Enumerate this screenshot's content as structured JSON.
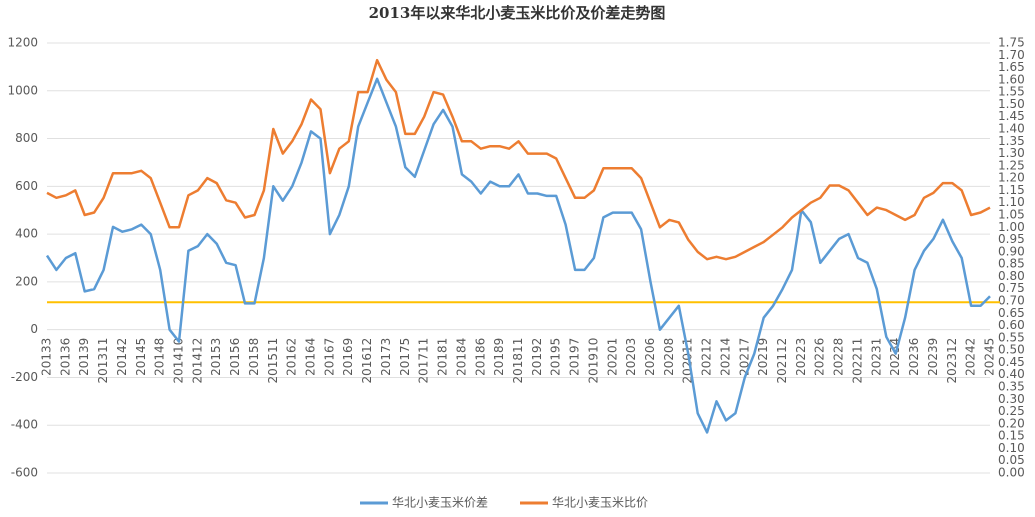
{
  "chart_data": {
    "type": "line",
    "title": "2013年以来华北小麦玉米比价及价差走势图",
    "categories": [
      "20133",
      null,
      "20136",
      null,
      "20139",
      null,
      "201311",
      null,
      "20142",
      null,
      "20145",
      null,
      "20148",
      null,
      "201410",
      null,
      "201412",
      null,
      "20153",
      null,
      "20156",
      null,
      "20158",
      null,
      "201511",
      null,
      "20162",
      null,
      "20164",
      null,
      "20167",
      null,
      "20169",
      null,
      "201612",
      null,
      "20173",
      null,
      "20175",
      null,
      "201711",
      null,
      "20181",
      null,
      "20184",
      null,
      "20186",
      null,
      "20189",
      null,
      "201811",
      null,
      "20192",
      null,
      "20195",
      null,
      "20197",
      null,
      "201910",
      null,
      "20201",
      null,
      "20203",
      null,
      "20206",
      null,
      "20208",
      null,
      "202011",
      null,
      "20212",
      null,
      "20214",
      null,
      "20217",
      null,
      "20219",
      null,
      "202112",
      null,
      "20223",
      null,
      "20226",
      null,
      "20228",
      null,
      "202211",
      null,
      "20231",
      null,
      "20234",
      null,
      "20236",
      null,
      "20239",
      null,
      "202312",
      null,
      "20242",
      null,
      "20245"
    ],
    "series": [
      {
        "name": "华北小麦玉米价差",
        "color": "#5b9bd5",
        "axis": "y",
        "values": [
          310,
          250,
          300,
          320,
          160,
          170,
          250,
          430,
          410,
          420,
          440,
          400,
          250,
          0,
          -50,
          330,
          350,
          400,
          360,
          280,
          270,
          110,
          110,
          300,
          600,
          540,
          600,
          700,
          830,
          800,
          400,
          480,
          600,
          850,
          950,
          1050,
          950,
          850,
          680,
          640,
          750,
          860,
          920,
          850,
          650,
          620,
          570,
          620,
          600,
          600,
          650,
          570,
          570,
          560,
          560,
          440,
          250,
          250,
          300,
          470,
          490,
          490,
          490,
          420,
          200,
          0,
          50,
          100,
          -100,
          -350,
          -430,
          -300,
          -380,
          -350,
          -200,
          -100,
          50,
          100,
          170,
          250,
          500,
          450,
          280,
          330,
          380,
          400,
          300,
          280,
          170,
          -30,
          -100,
          50,
          250,
          330,
          380,
          460,
          370,
          300,
          100,
          100,
          140
        ]
      },
      {
        "name": "华北小麦玉米比价",
        "color": "#ed7d31",
        "axis": "y2",
        "values": [
          1.14,
          1.12,
          1.13,
          1.15,
          1.05,
          1.06,
          1.12,
          1.22,
          1.22,
          1.22,
          1.23,
          1.2,
          1.1,
          1.0,
          1.0,
          1.13,
          1.15,
          1.2,
          1.18,
          1.11,
          1.1,
          1.04,
          1.05,
          1.15,
          1.4,
          1.3,
          1.35,
          1.42,
          1.52,
          1.48,
          1.22,
          1.32,
          1.35,
          1.55,
          1.55,
          1.68,
          1.6,
          1.55,
          1.38,
          1.38,
          1.45,
          1.55,
          1.54,
          1.45,
          1.35,
          1.35,
          1.32,
          1.33,
          1.33,
          1.32,
          1.35,
          1.3,
          1.3,
          1.3,
          1.28,
          1.2,
          1.12,
          1.12,
          1.15,
          1.24,
          1.24,
          1.24,
          1.24,
          1.2,
          1.1,
          1.0,
          1.03,
          1.02,
          0.95,
          0.9,
          0.87,
          0.88,
          0.87,
          0.88,
          0.9,
          0.92,
          0.94,
          0.97,
          1.0,
          1.04,
          1.07,
          1.1,
          1.12,
          1.17,
          1.17,
          1.15,
          1.1,
          1.05,
          1.08,
          1.07,
          1.05,
          1.03,
          1.05,
          1.12,
          1.14,
          1.18,
          1.18,
          1.15,
          1.05,
          1.06,
          1.08
        ]
      }
    ],
    "hline": {
      "value": 115,
      "color": "#ffc000"
    },
    "ylim": [
      -600,
      1200
    ],
    "yticks": [
      -600,
      -400,
      -200,
      0,
      200,
      400,
      600,
      800,
      1000,
      1200
    ],
    "y2lim": [
      0,
      1.75
    ],
    "y2ticks": [
      {
        "value": 0,
        "label": "0.00"
      },
      {
        "value": 0.05,
        "label": "0.05"
      },
      {
        "value": 0.1,
        "label": "0.10"
      },
      {
        "value": 0.15,
        "label": "0.15"
      },
      {
        "value": 0.2,
        "label": "0.20"
      },
      {
        "value": 0.25,
        "label": "0.25"
      },
      {
        "value": 0.3,
        "label": "0.30"
      },
      {
        "value": 0.35,
        "label": "0.35"
      },
      {
        "value": 0.4,
        "label": "0.40"
      },
      {
        "value": 0.45,
        "label": "0.45"
      },
      {
        "value": 0.5,
        "label": "0.50"
      },
      {
        "value": 0.55,
        "label": "0.55"
      },
      {
        "value": 0.6,
        "label": "0.60"
      },
      {
        "value": 0.65,
        "label": "0.65"
      },
      {
        "value": 0.7,
        "label": "0.70"
      },
      {
        "value": 0.75,
        "label": "0.75"
      },
      {
        "value": 0.8,
        "label": "0.80"
      },
      {
        "value": 0.85,
        "label": "0.85"
      },
      {
        "value": 0.9,
        "label": "0.90"
      },
      {
        "value": 0.95,
        "label": "0.95"
      },
      {
        "value": 1,
        "label": "1.00"
      },
      {
        "value": 1.05,
        "label": "1.05"
      },
      {
        "value": 1.1,
        "label": "1.10"
      },
      {
        "value": 1.15,
        "label": "1.15"
      },
      {
        "value": 1.2,
        "label": "1.20"
      },
      {
        "value": 1.25,
        "label": "1.25"
      },
      {
        "value": 1.3,
        "label": "1.30"
      },
      {
        "value": 1.35,
        "label": "1.35"
      },
      {
        "value": 1.4,
        "label": "1.40"
      },
      {
        "value": 1.45,
        "label": "1.45"
      },
      {
        "value": 1.5,
        "label": "1.50"
      },
      {
        "value": 1.55,
        "label": "1.55"
      },
      {
        "value": 1.6,
        "label": "1.60"
      },
      {
        "value": 1.65,
        "label": "1.65"
      },
      {
        "value": 1.7,
        "label": "1.70"
      },
      {
        "value": 1.75,
        "label": "1.75"
      }
    ],
    "grid": true,
    "legend": "bottom"
  }
}
